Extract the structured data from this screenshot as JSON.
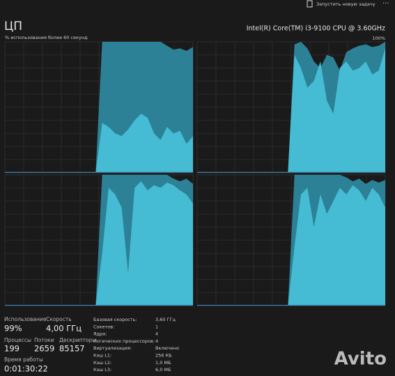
{
  "toolbar": {
    "action": "Запустить новую задачу",
    "more": "···"
  },
  "header": {
    "title": "ЦП",
    "cpu_name": "Intel(R) Core(TM) i3-9100 CPU @ 3.60GHz",
    "subtitle": "% использования более 60 секунд",
    "max_label": "100%"
  },
  "graph_style": {
    "usage_color": "#2c8196",
    "kernel_color": "#45bcd3",
    "ylim": [
      0,
      100
    ]
  },
  "graphs": [
    {
      "usage": [
        0,
        0,
        0,
        0,
        0,
        0,
        0,
        0,
        0,
        0,
        0,
        0,
        0,
        0,
        0,
        100,
        100,
        100,
        100,
        100,
        100,
        100,
        100,
        100,
        100,
        97,
        94,
        95,
        93,
        96
      ],
      "kernel": [
        0,
        0,
        0,
        0,
        0,
        0,
        0,
        0,
        0,
        0,
        0,
        0,
        0,
        0,
        0,
        38,
        35,
        30,
        28,
        33,
        40,
        45,
        42,
        30,
        25,
        35,
        30,
        32,
        22,
        28
      ]
    },
    {
      "usage": [
        0,
        0,
        0,
        0,
        0,
        0,
        0,
        0,
        0,
        0,
        0,
        0,
        0,
        0,
        0,
        98,
        100,
        95,
        85,
        80,
        90,
        88,
        78,
        92,
        95,
        97,
        98,
        96,
        97,
        100
      ],
      "kernel": [
        0,
        0,
        0,
        0,
        0,
        0,
        0,
        0,
        0,
        0,
        0,
        0,
        0,
        0,
        0,
        90,
        80,
        65,
        70,
        85,
        55,
        45,
        80,
        85,
        78,
        80,
        85,
        75,
        78,
        95
      ]
    },
    {
      "usage": [
        0,
        0,
        0,
        0,
        0,
        0,
        0,
        0,
        0,
        0,
        0,
        0,
        0,
        0,
        0,
        100,
        100,
        100,
        100,
        100,
        100,
        100,
        100,
        100,
        100,
        100,
        97,
        95,
        97,
        93
      ],
      "kernel": [
        0,
        0,
        0,
        0,
        0,
        0,
        0,
        0,
        0,
        0,
        0,
        0,
        0,
        0,
        0,
        40,
        90,
        85,
        75,
        25,
        90,
        95,
        88,
        92,
        90,
        94,
        92,
        88,
        85,
        78
      ]
    },
    {
      "usage": [
        0,
        0,
        0,
        0,
        0,
        0,
        0,
        0,
        0,
        0,
        0,
        0,
        0,
        0,
        0,
        100,
        100,
        100,
        100,
        100,
        100,
        100,
        100,
        98,
        95,
        97,
        93,
        96,
        94,
        96
      ],
      "kernel": [
        0,
        0,
        0,
        0,
        0,
        0,
        0,
        0,
        0,
        0,
        0,
        0,
        0,
        0,
        0,
        45,
        85,
        90,
        60,
        85,
        70,
        80,
        90,
        85,
        92,
        88,
        80,
        90,
        85,
        75
      ]
    }
  ],
  "stats": {
    "usage": {
      "label": "Использование",
      "value": "99%"
    },
    "speed": {
      "label": "Скорость",
      "value": "4,00 ГГц"
    },
    "processes": {
      "label": "Процессы",
      "value": "199"
    },
    "threads": {
      "label": "Потоки",
      "value": "2659"
    },
    "handles": {
      "label": "Дескрипторы",
      "value": "85157"
    },
    "uptime": {
      "label": "Время работы",
      "value": "0:01:30:22"
    }
  },
  "details": [
    [
      "Базовая скорость:",
      "3,60 ГГц"
    ],
    [
      "Сокетов:",
      "1"
    ],
    [
      "Ядра:",
      "4"
    ],
    [
      "Логических процессоров:",
      "4"
    ],
    [
      "Виртуализация:",
      "Включено"
    ],
    [
      "Кэш L1:",
      "256 КБ"
    ],
    [
      "Кэш L2:",
      "1,0 МБ"
    ],
    [
      "Кэш L3:",
      "6,0 МБ"
    ]
  ],
  "watermark": "Avito"
}
